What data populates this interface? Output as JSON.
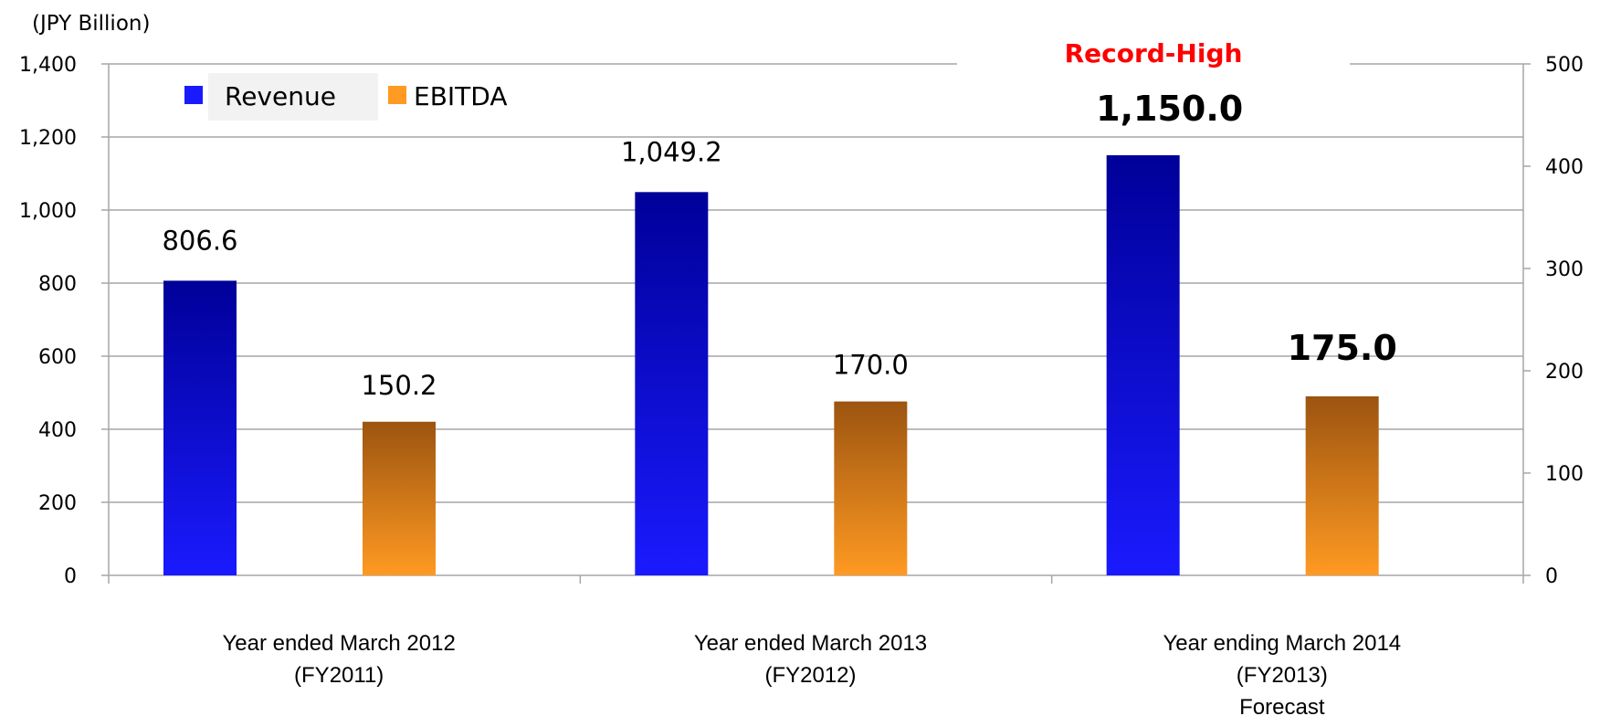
{
  "chart_data": {
    "type": "bar",
    "unit_label": "(JPY Billion)",
    "categories": [
      [
        "Year ended March 2012",
        "(FY2011)"
      ],
      [
        "Year ended March 2013",
        "(FY2012)"
      ],
      [
        "Year ending March 2014",
        "(FY2013)",
        "Forecast"
      ]
    ],
    "series": [
      {
        "name": "Revenue",
        "axis": "left",
        "values": [
          806.6,
          1049.2,
          1150.0
        ],
        "labels": [
          "806.6",
          "1,049.2",
          "1,150.0"
        ],
        "label_bold": [
          false,
          false,
          true
        ],
        "color_top": "#000099",
        "color_bottom": "#1a1aff"
      },
      {
        "name": "EBITDA",
        "axis": "right",
        "values": [
          150.2,
          170.0,
          175.0
        ],
        "labels": [
          "150.2",
          "170.0",
          "175.0"
        ],
        "label_bold": [
          false,
          false,
          true
        ],
        "color_top": "#9c5410",
        "color_bottom": "#ff9a22"
      }
    ],
    "y_left": {
      "min": 0,
      "max": 1400,
      "ticks": [
        "0",
        "200",
        "400",
        "600",
        "800",
        "1,000",
        "1,200",
        "1,400"
      ]
    },
    "y_right": {
      "min": 0,
      "max": 500,
      "ticks": [
        "0",
        "100",
        "200",
        "300",
        "400",
        "500"
      ]
    },
    "annotation": {
      "text": "Record-High",
      "color": "#ff0000"
    },
    "legend": {
      "placement": "top-left"
    },
    "grid": true,
    "gridline_color": "#a6a6a6"
  }
}
